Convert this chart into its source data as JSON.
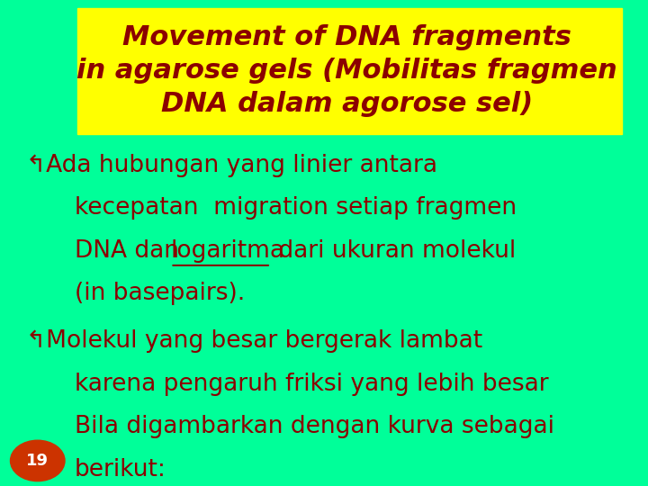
{
  "bg_color": "#00FF99",
  "title_bg_color": "#FFFF00",
  "title_text_color": "#8B0000",
  "body_text_color": "#8B0000",
  "title_lines": [
    "Movement of DNA fragments",
    "in agarose gels (Mobilitas fragmen",
    "DNA dalam agorose sel)"
  ],
  "bullet1_line1": "↰Ada hubungan yang linier antara",
  "bullet1_line2": "kecepatan  migration setiap fragmen",
  "bullet1_line3_pre": "DNA dan  ",
  "bullet1_line3_underline": "logaritma",
  "bullet1_line3_post": " dari ukuran molekul",
  "bullet1_line4": "(in basepairs).",
  "bullet2_line1": "↰Molekul yang besar bergerak lambat",
  "bullet2_line2": "karena pengaruh friksi yang lebih besar",
  "bullet2_line3": "Bila digambarkan dengan kurva sebagai",
  "bullet2_line4": "berikut:",
  "page_number": "19",
  "page_num_color": "#CC3300",
  "title_fontsize": 22,
  "body_fontsize": 19,
  "page_num_fontsize": 13
}
